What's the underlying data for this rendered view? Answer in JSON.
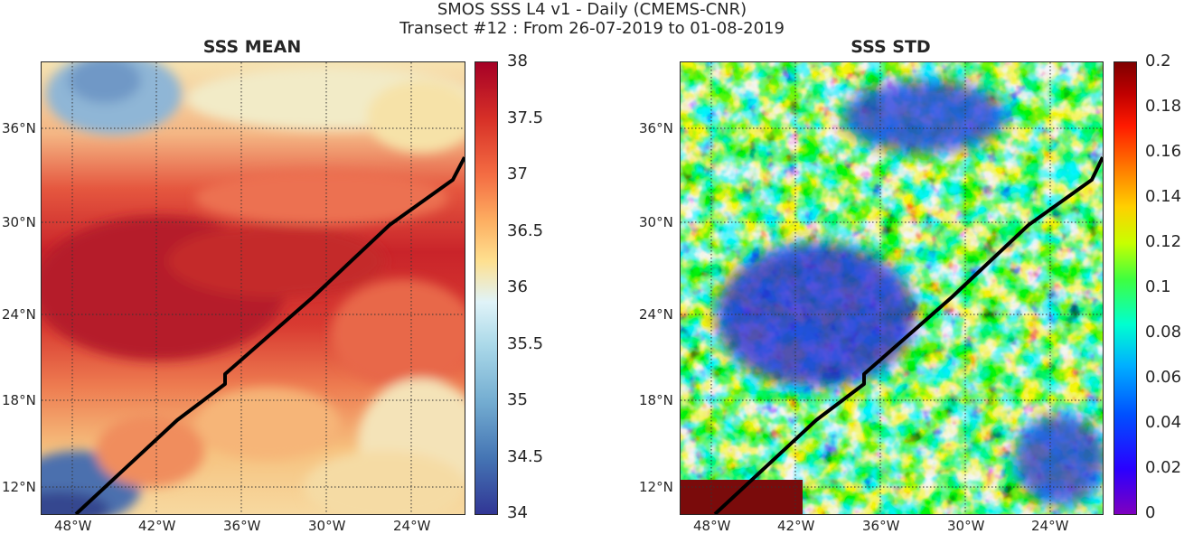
{
  "figure": {
    "title_line1": "SMOS SSS L4 v1 - Daily (CMEMS-CNR)",
    "title_line2": "Transect #12 : From 26-07-2019 to 01-08-2019"
  },
  "panels": [
    {
      "title": "SSS MEAN",
      "colormap": "RdYlBu_r",
      "colorbar_ticks": [
        "34",
        "34.5",
        "35",
        "35.5",
        "36",
        "36.5",
        "37",
        "37.5",
        "38"
      ],
      "colorbar_range": [
        34,
        38
      ],
      "colors": {
        "low": "#313695",
        "mid": "#f0eed8",
        "high": "#a50026"
      }
    },
    {
      "title": "SSS STD",
      "colormap": "jet",
      "colorbar_ticks": [
        "0",
        "0.02",
        "0.04",
        "0.06",
        "0.08",
        "0.1",
        "0.12",
        "0.14",
        "0.16",
        "0.18",
        "0.2"
      ],
      "colorbar_range": [
        0,
        0.2
      ],
      "colors": {
        "low": "#7f00bf",
        "mid": "#00ff80",
        "high": "#7f0000"
      }
    }
  ],
  "lat_ticks": [
    "36°N",
    "30°N",
    "24°N",
    "18°N",
    "12°N"
  ],
  "lon_ticks": [
    "48°W",
    "42°W",
    "36°W",
    "30°W",
    "24°W"
  ],
  "transect_color": "#000000"
}
